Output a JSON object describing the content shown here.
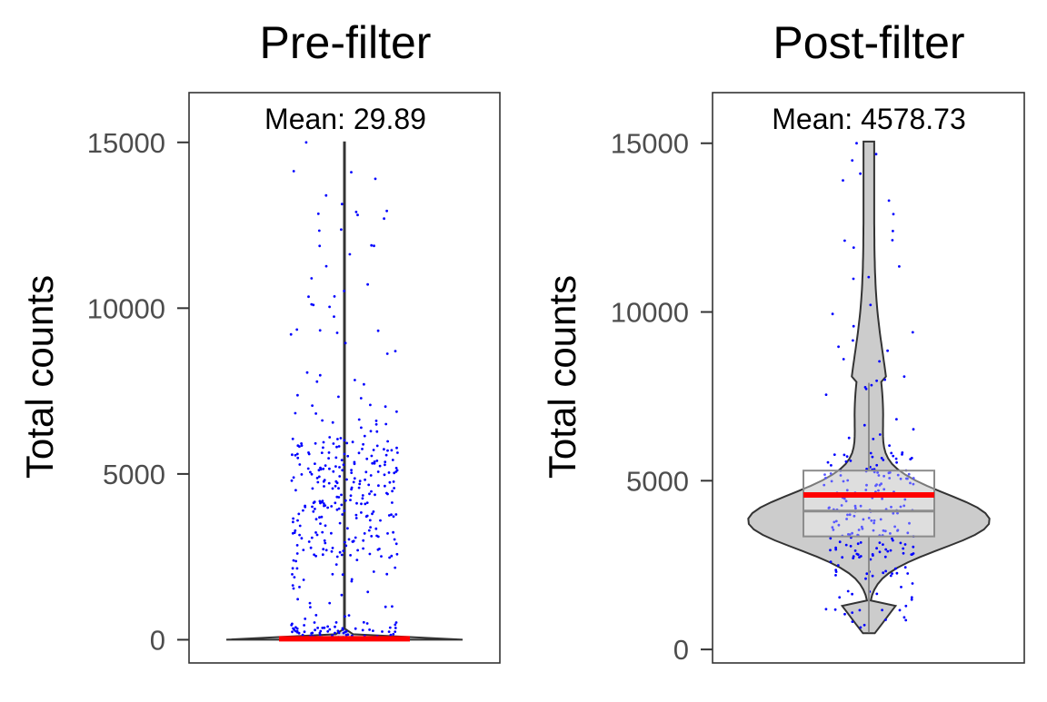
{
  "chart_data": [
    {
      "type": "violin",
      "title": "Pre-filter",
      "xlabel": "",
      "ylabel": "Total counts",
      "ylim": [
        -700,
        16500
      ],
      "yticks": [
        0,
        5000,
        10000,
        15000
      ],
      "ytick_labels": [
        "0",
        "5000",
        "10000",
        "15000"
      ],
      "annotation": "Mean: 29.89",
      "mean": 29.89,
      "show_boxplot": false,
      "violin_range": [
        0,
        15000
      ],
      "colors": {
        "points": "#0000ff",
        "mean_line": "#ff0000",
        "violin_fill": "#d9d9d9",
        "violin_stroke": "#333333"
      },
      "grid": false,
      "legend": "none"
    },
    {
      "type": "violin",
      "title": "Post-filter",
      "xlabel": "",
      "ylabel": "Total counts",
      "ylim": [
        -400,
        16500
      ],
      "yticks": [
        0,
        5000,
        10000,
        15000
      ],
      "ytick_labels": [
        "0",
        "5000",
        "10000",
        "15000"
      ],
      "annotation": "Mean: 4578.73",
      "mean": 4578.73,
      "show_boxplot": true,
      "box": {
        "q1": 3350,
        "median": 4100,
        "q3": 5300,
        "whisker_low": 500,
        "whisker_high": 7900
      },
      "violin_range": [
        480,
        15050
      ],
      "colors": {
        "points": "#0000ff",
        "mean_line": "#ff0000",
        "violin_fill": "#cccccc",
        "violin_stroke": "#333333",
        "box_stroke": "#8c8c8c"
      },
      "grid": false,
      "legend": "none"
    }
  ]
}
